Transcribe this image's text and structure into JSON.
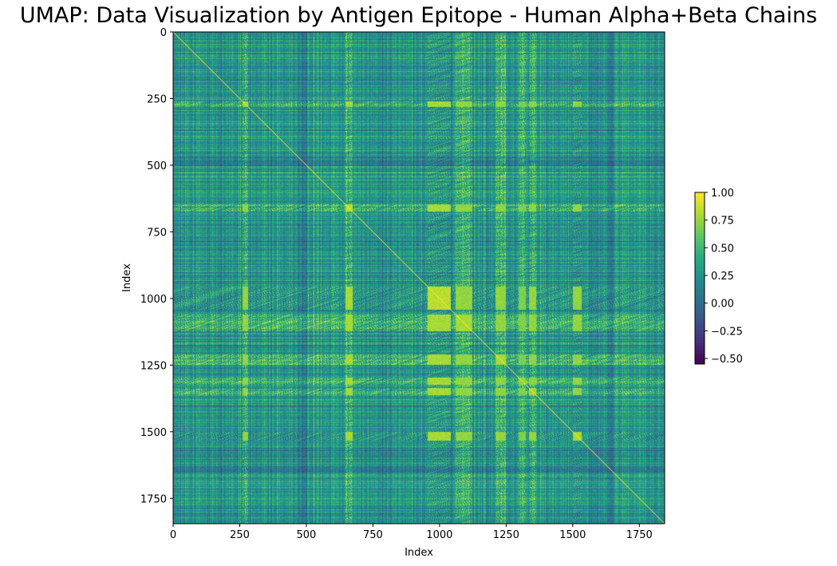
{
  "chart_data": {
    "type": "heatmap",
    "title": "UMAP: Data Visualization by Antigen Epitope - Human Alpha+Beta Chains",
    "xlabel": "Index",
    "ylabel": "Index",
    "n": 1845,
    "xlim": [
      0,
      1845
    ],
    "ylim": [
      1845,
      0
    ],
    "x_ticks": [
      0,
      250,
      500,
      750,
      1000,
      1250,
      1500,
      1750
    ],
    "y_ticks": [
      0,
      250,
      500,
      750,
      1000,
      1250,
      1500,
      1750
    ],
    "x_tick_labels": [
      "0",
      "250",
      "500",
      "750",
      "1000",
      "1250",
      "1500",
      "1750"
    ],
    "y_tick_labels": [
      "0",
      "250",
      "500",
      "750",
      "1000",
      "1250",
      "1500",
      "1750"
    ],
    "colormap": "viridis",
    "colorbar": {
      "min": -0.55,
      "max": 1.0,
      "ticks": [
        1.0,
        0.75,
        0.5,
        0.25,
        0.0,
        -0.25,
        -0.5
      ],
      "tick_labels": [
        "1.00",
        "0.75",
        "0.50",
        "0.25",
        "0.00",
        "−0.25",
        "−0.50"
      ]
    },
    "diagonal_value": 1.0,
    "background_value": 0.28,
    "high_similarity_blocks": [
      {
        "start": 955,
        "end": 1040,
        "value": 0.9
      },
      {
        "start": 645,
        "end": 670,
        "value": 0.9
      },
      {
        "start": 1060,
        "end": 1120,
        "value": 0.85
      },
      {
        "start": 1210,
        "end": 1245,
        "value": 0.85
      },
      {
        "start": 1335,
        "end": 1360,
        "value": 0.85
      },
      {
        "start": 258,
        "end": 280,
        "value": 0.85
      },
      {
        "start": 1500,
        "end": 1530,
        "value": 0.85
      },
      {
        "start": 1295,
        "end": 1320,
        "value": 0.8
      }
    ],
    "low_similarity_bands": [
      {
        "start": 960,
        "end": 1045,
        "value": 0.02
      },
      {
        "start": 1500,
        "end": 1530,
        "value": 0.05
      },
      {
        "start": 480,
        "end": 500,
        "value": 0.08
      },
      {
        "start": 1630,
        "end": 1650,
        "value": 0.1
      }
    ]
  }
}
